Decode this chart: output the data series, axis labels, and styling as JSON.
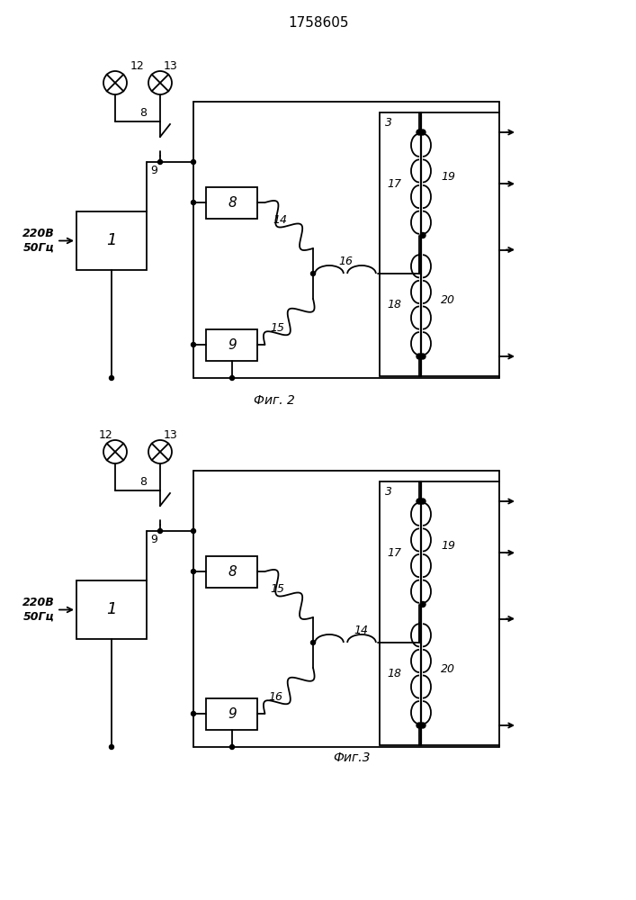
{
  "title": "1758605",
  "fig2_caption": "Фиг. 2",
  "fig3_caption": "Фиг.3",
  "bg_color": "#ffffff",
  "line_color": "#000000",
  "lw": 1.3
}
